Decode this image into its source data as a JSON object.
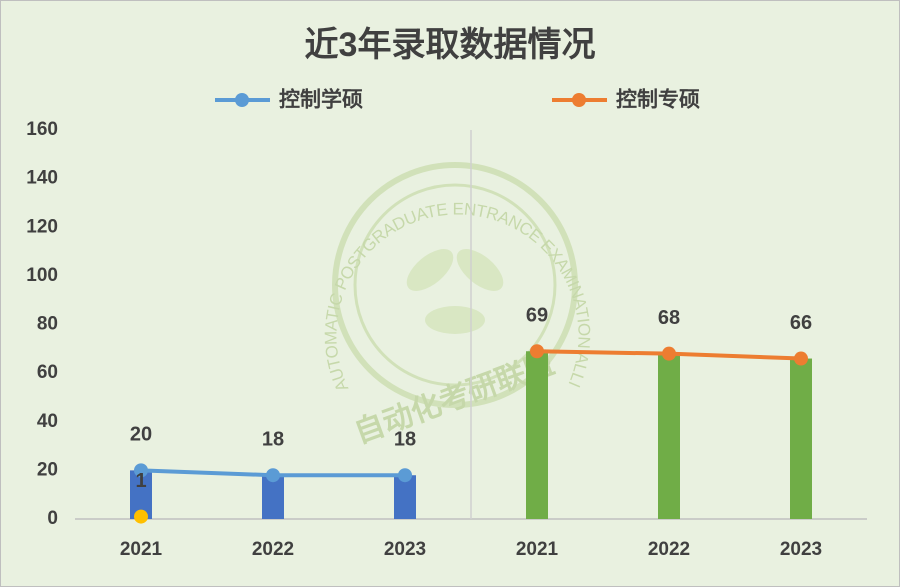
{
  "chart_data": {
    "type": "bar_line",
    "title": "近3年录取数据情况",
    "categories": [
      "2021",
      "2022",
      "2023",
      "2021",
      "2022",
      "2023"
    ],
    "bars": {
      "values": [
        20,
        18,
        18,
        69,
        68,
        66
      ],
      "colors": [
        "#4472c4",
        "#4472c4",
        "#4472c4",
        "#70ad47",
        "#70ad47",
        "#70ad47"
      ]
    },
    "series": [
      {
        "name": "控制学硕",
        "color": "#5b9bd5",
        "values": [
          20,
          18,
          18,
          null,
          null,
          null
        ]
      },
      {
        "name": "控制专硕",
        "color": "#ed7d31",
        "values": [
          null,
          null,
          null,
          69,
          68,
          66
        ]
      },
      {
        "color": "#ffc000",
        "values": [
          1,
          null,
          null,
          null,
          null,
          null
        ]
      }
    ],
    "ylim": [
      0,
      160
    ],
    "yticks": [
      0,
      20,
      40,
      60,
      80,
      100,
      120,
      140,
      160
    ],
    "legend": "top",
    "watermark": {
      "english": "AUTOMATIC POSTGRADUATE ENTRANCE EXAMINATION ALLIANCE",
      "chinese": "自动化考研联盟"
    }
  }
}
